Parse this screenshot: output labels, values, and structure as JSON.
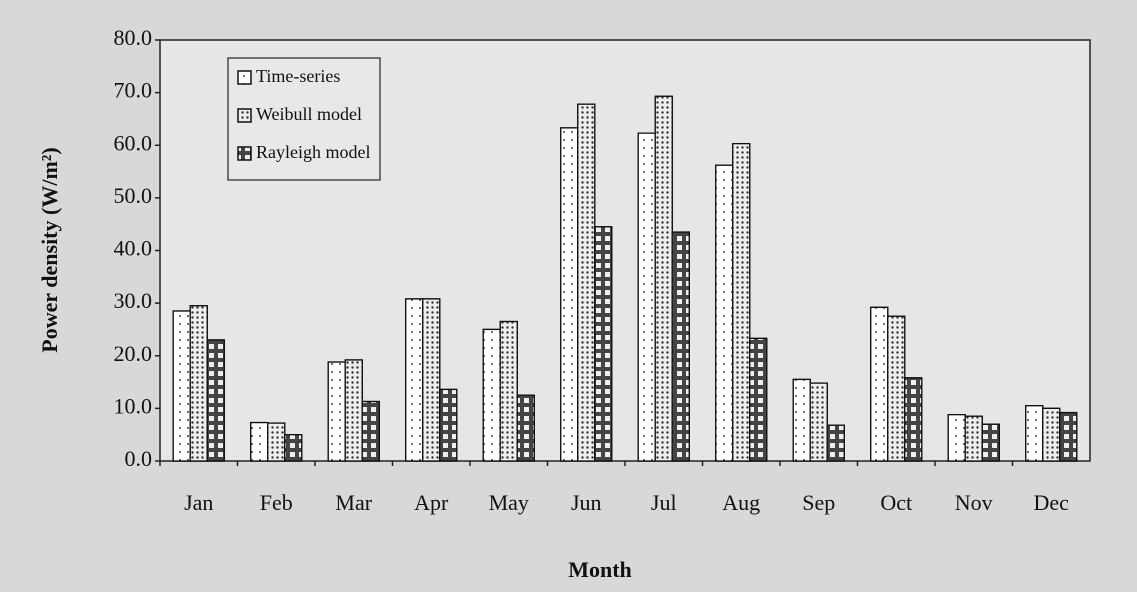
{
  "chart_data": {
    "type": "bar",
    "x_label": "Month",
    "y_label": "Power density (W/m²)",
    "categories": [
      "Jan",
      "Feb",
      "Mar",
      "Apr",
      "May",
      "Jun",
      "Jul",
      "Aug",
      "Sep",
      "Oct",
      "Nov",
      "Dec"
    ],
    "series": [
      {
        "name": "Time-series",
        "color": "#ffffff",
        "values": [
          28.5,
          7.3,
          18.8,
          30.8,
          25.0,
          63.3,
          62.3,
          56.2,
          15.5,
          29.2,
          8.8,
          10.5
        ]
      },
      {
        "name": "Weibull model",
        "color": "#ffffff",
        "values": [
          29.5,
          7.2,
          19.2,
          30.8,
          26.5,
          67.8,
          69.3,
          60.3,
          14.8,
          27.5,
          8.5,
          10.0
        ]
      },
      {
        "name": "Rayleigh model",
        "color": "#ffffff",
        "values": [
          23.0,
          5.0,
          11.3,
          13.6,
          12.5,
          44.5,
          43.5,
          23.3,
          6.8,
          15.8,
          7.0,
          9.2
        ]
      }
    ],
    "ylim": [
      0,
      80
    ],
    "yticks": [
      {
        "value": 0,
        "label": "0.0"
      },
      {
        "value": 10,
        "label": "10.0"
      },
      {
        "value": 20,
        "label": "20.0"
      },
      {
        "value": 30,
        "label": "30.0"
      },
      {
        "value": 40,
        "label": "40.0"
      },
      {
        "value": 50,
        "label": "50.0"
      },
      {
        "value": 60,
        "label": "60.0"
      },
      {
        "value": 70,
        "label": "70.0"
      },
      {
        "value": 80,
        "label": "80.0"
      }
    ],
    "grid": false,
    "legend": "upper left"
  }
}
